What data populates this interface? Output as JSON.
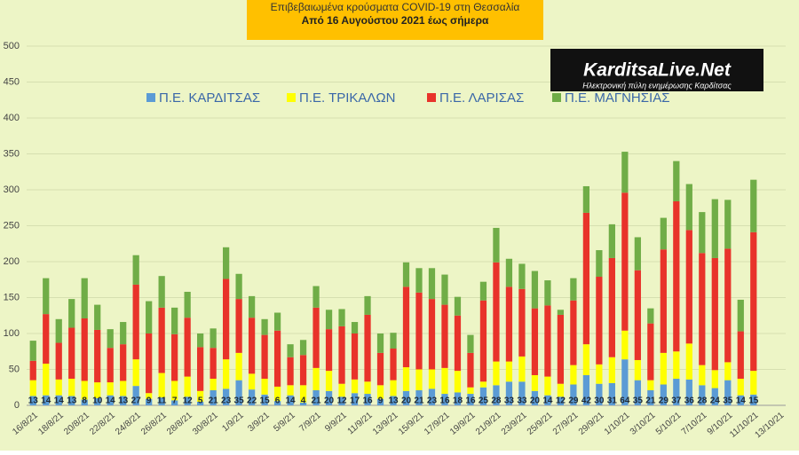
{
  "chart_data": {
    "type": "stacked_bar",
    "title": "Επιβεβαιωμένα κρούσματα COVID-19 στη Θεσσαλία",
    "subtitle": "Από 16 Αυγούστου 2021 έως σήμερα",
    "logo": {
      "name": "KarditsaLive.Net",
      "tagline": "Ηλεκτρονική πύλη ενημέρωσης Καρδίτσας"
    },
    "categories": [
      "16/8/21",
      null,
      "18/8/21",
      null,
      "20/8/21",
      null,
      "22/8/21",
      null,
      "24/8/21",
      null,
      "26/8/21",
      null,
      "28/8/21",
      null,
      "30/8/21",
      null,
      "1/9/21",
      null,
      "3/9/21",
      null,
      "5/9/21",
      null,
      "7/9/21",
      null,
      "9/9/21",
      null,
      "11/9/21",
      null,
      "13/9/21",
      null,
      "15/9/21",
      null,
      "17/9/21",
      null,
      "19/9/21",
      null,
      "21/9/21",
      null,
      "23/9/21",
      null,
      "25/9/21",
      null,
      "27/9/21",
      null,
      "29/9/21",
      null,
      "1/10/21",
      null,
      "3/10/21",
      null,
      "5/10/21",
      null,
      "7/10/21",
      null,
      "9/10/21",
      null,
      "11/10/21",
      null,
      "13/10/21"
    ],
    "series": [
      {
        "name": "Π.Ε. ΚΑΡΔΙΤΣΑΣ",
        "color": "#5b9bd5",
        "show_value_labels": true,
        "values": [
          13,
          14,
          14,
          13,
          8,
          10,
          14,
          13,
          27,
          9,
          11,
          7,
          12,
          5,
          21,
          23,
          35,
          22,
          15,
          6,
          14,
          4,
          21,
          20,
          12,
          17,
          16,
          9,
          13,
          20,
          21,
          23,
          16,
          18,
          16,
          25,
          28,
          33,
          33,
          20,
          14,
          12,
          29,
          42,
          30,
          31,
          64,
          35,
          21,
          29,
          37,
          36,
          28,
          24,
          35,
          14,
          15,
          null,
          null
        ]
      },
      {
        "name": "Π.Ε. ΤΡΙΚΑΛΩΝ",
        "color": "#ffff00",
        "values": [
          22,
          44,
          22,
          24,
          26,
          22,
          18,
          21,
          37,
          8,
          34,
          27,
          28,
          15,
          16,
          41,
          38,
          22,
          22,
          20,
          14,
          24,
          31,
          28,
          18,
          19,
          17,
          19,
          22,
          33,
          29,
          27,
          36,
          30,
          9,
          8,
          33,
          28,
          35,
          22,
          26,
          18,
          27,
          43,
          27,
          36,
          40,
          28,
          14,
          44,
          38,
          50,
          28,
          25,
          25,
          23,
          33,
          null,
          null
        ]
      },
      {
        "name": "Π.Ε. ΛΑΡΙΣΑΣ",
        "color": "#e8332a",
        "values": [
          27,
          69,
          51,
          71,
          87,
          73,
          48,
          51,
          104,
          83,
          91,
          65,
          82,
          61,
          43,
          112,
          75,
          78,
          61,
          78,
          39,
          42,
          84,
          58,
          80,
          64,
          93,
          45,
          44,
          112,
          107,
          98,
          88,
          77,
          48,
          113,
          138,
          104,
          94,
          93,
          99,
          96,
          90,
          183,
          122,
          138,
          192,
          125,
          79,
          144,
          209,
          158,
          156,
          156,
          158,
          66,
          193,
          null,
          null
        ]
      },
      {
        "name": "Π.Ε. ΜΑΓΝΗΣΙΑΣ",
        "color": "#70ad47",
        "values": [
          28,
          50,
          33,
          40,
          56,
          35,
          26,
          31,
          41,
          45,
          44,
          37,
          36,
          19,
          27,
          44,
          35,
          30,
          22,
          25,
          18,
          21,
          30,
          27,
          24,
          16,
          26,
          27,
          22,
          34,
          34,
          43,
          42,
          26,
          25,
          26,
          48,
          39,
          35,
          52,
          35,
          7,
          31,
          37,
          37,
          47,
          57,
          46,
          21,
          44,
          56,
          64,
          57,
          82,
          68,
          44,
          73,
          null,
          null
        ]
      }
    ],
    "ylim": [
      0,
      500
    ],
    "yticks": [
      0,
      50,
      100,
      150,
      200,
      250,
      300,
      350,
      400,
      450,
      500
    ],
    "grid": true
  }
}
